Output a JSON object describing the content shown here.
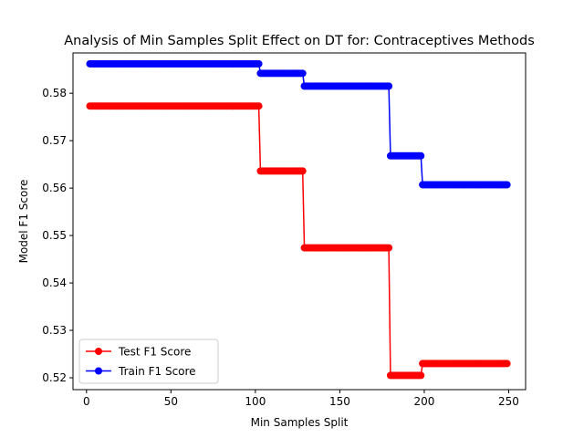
{
  "chart_data": {
    "type": "line",
    "title": "Analysis of Min Samples Split Effect on DT for: Contraceptives Methods",
    "xlabel": "Min Samples Split",
    "ylabel": "Model F1 Score",
    "xlim": [
      -8,
      260
    ],
    "ylim": [
      0.5175,
      0.5885
    ],
    "xticks": [
      0,
      50,
      100,
      150,
      200,
      250
    ],
    "xtick_labels": [
      "0",
      "50",
      "100",
      "150",
      "200",
      "250"
    ],
    "yticks": [
      0.52,
      0.53,
      0.54,
      0.55,
      0.56,
      0.57,
      0.58
    ],
    "ytick_labels": [
      "0.52",
      "0.53",
      "0.54",
      "0.55",
      "0.56",
      "0.57",
      "0.58"
    ],
    "grid": false,
    "legend_position": "lower left",
    "series": [
      {
        "name": "Test F1 Score",
        "color": "#ff0000",
        "x_start": 2,
        "x_end": 249,
        "x_step": 1,
        "steps": [
          {
            "from": 2,
            "to": 102,
            "y": 0.5773
          },
          {
            "from": 103,
            "to": 128,
            "y": 0.5636
          },
          {
            "from": 129,
            "to": 179,
            "y": 0.5474
          },
          {
            "from": 180,
            "to": 198,
            "y": 0.5205
          },
          {
            "from": 199,
            "to": 249,
            "y": 0.523
          }
        ]
      },
      {
        "name": "Train F1 Score",
        "color": "#0000ff",
        "x_start": 2,
        "x_end": 249,
        "x_step": 1,
        "steps": [
          {
            "from": 2,
            "to": 102,
            "y": 0.5862
          },
          {
            "from": 103,
            "to": 128,
            "y": 0.5842
          },
          {
            "from": 129,
            "to": 179,
            "y": 0.5815
          },
          {
            "from": 180,
            "to": 198,
            "y": 0.5668
          },
          {
            "from": 199,
            "to": 249,
            "y": 0.5607
          }
        ]
      }
    ]
  }
}
